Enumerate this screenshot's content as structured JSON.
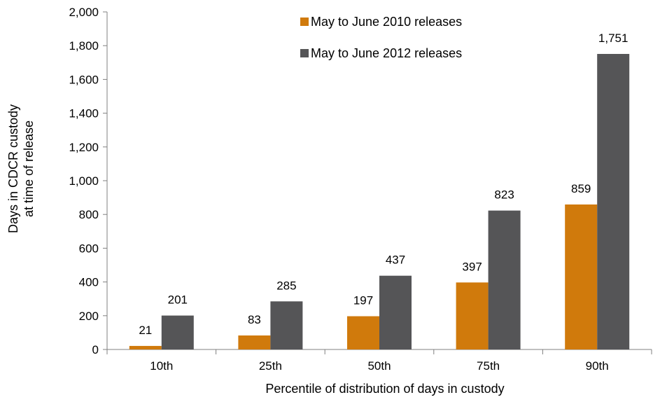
{
  "chart_data": {
    "type": "bar",
    "title": "",
    "xlabel": "Percentile of distribution of days in custody",
    "ylabel_lines": [
      "Days in CDCR custody",
      "at time of release"
    ],
    "categories": [
      "10th",
      "25th",
      "50th",
      "75th",
      "90th"
    ],
    "ylim": [
      0,
      2000
    ],
    "yticks": [
      0,
      200,
      400,
      600,
      800,
      1000,
      1200,
      1400,
      1600,
      1800,
      2000
    ],
    "ytick_labels": [
      "0",
      "200",
      "400",
      "600",
      "800",
      "1,000",
      "1,200",
      "1,400",
      "1,600",
      "1,800",
      "2,000"
    ],
    "grid": false,
    "legend_position": "top-center",
    "series": [
      {
        "name": "May to June 2010 releases",
        "color": "#D07A0C",
        "values": [
          21,
          83,
          197,
          397,
          859
        ],
        "labels": [
          "21",
          "83",
          "197",
          "397",
          "859"
        ]
      },
      {
        "name": "May to June 2012 releases",
        "color": "#555557",
        "values": [
          201,
          285,
          437,
          823,
          1751
        ],
        "labels": [
          "201",
          "285",
          "437",
          "823",
          "1,751"
        ]
      }
    ]
  }
}
